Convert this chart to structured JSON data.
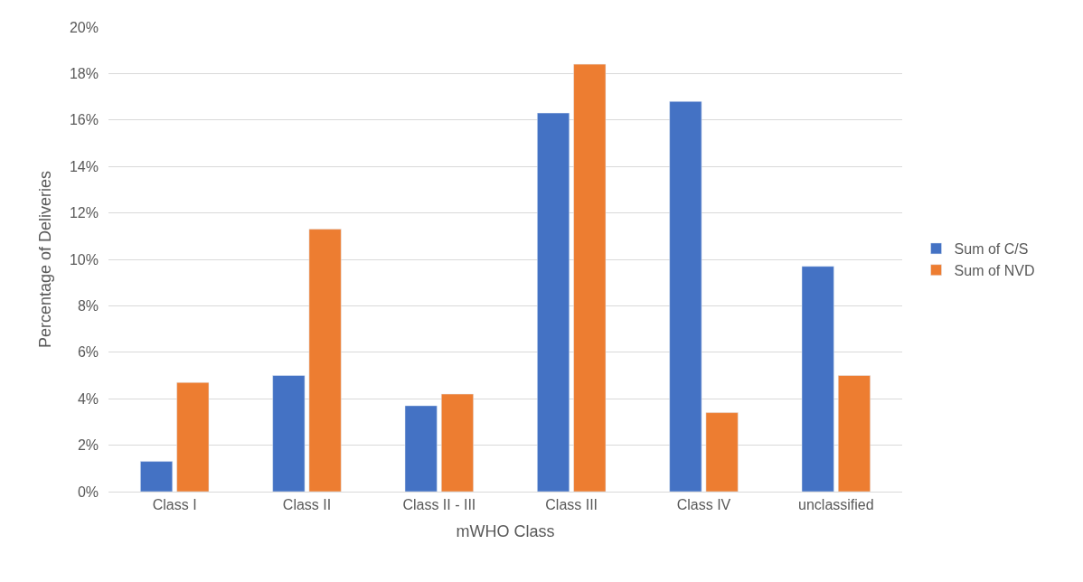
{
  "chart_data": {
    "type": "bar",
    "xlabel": "mWHO Class",
    "ylabel": "Percentage of Deliveries",
    "categories": [
      "Class I",
      "Class II",
      "Class II - III",
      "Class III",
      "Class IV",
      "unclassified"
    ],
    "series": [
      {
        "name": "Sum of C/S",
        "color": "#4472c4",
        "values": [
          1.3,
          5.0,
          3.7,
          16.3,
          16.8,
          9.7
        ]
      },
      {
        "name": "Sum of NVD",
        "color": "#ed7d31",
        "values": [
          4.7,
          11.3,
          4.2,
          18.4,
          3.4,
          5.0
        ]
      }
    ],
    "ylim": [
      0,
      20
    ],
    "yticks": [
      {
        "value": 0,
        "label": "0%"
      },
      {
        "value": 2,
        "label": "2%"
      },
      {
        "value": 4,
        "label": "4%"
      },
      {
        "value": 6,
        "label": "6%"
      },
      {
        "value": 8,
        "label": "8%"
      },
      {
        "value": 10,
        "label": "10%"
      },
      {
        "value": 12,
        "label": "12%"
      },
      {
        "value": 14,
        "label": "14%"
      },
      {
        "value": 16,
        "label": "16%"
      },
      {
        "value": 18,
        "label": "18%"
      },
      {
        "value": 20,
        "label": "20%"
      }
    ],
    "grid": "y",
    "legend": "right"
  }
}
